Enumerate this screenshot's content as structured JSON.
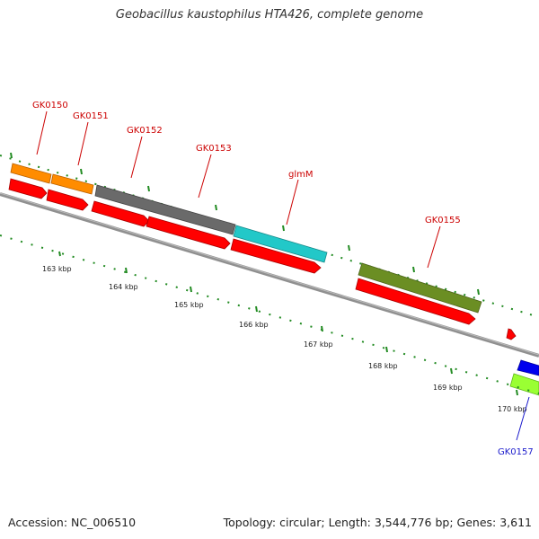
{
  "title": "Geobacillus kaustophilus HTA426, complete genome",
  "accession": "Accession: NC_006510",
  "topology": "Topology: circular; Length: 3,544,776 bp; Genes: 3,611",
  "colors": {
    "backbone": "#808080",
    "tick_green": "#228b22",
    "label_red": "#cc0000",
    "label_blue": "#1a1acc",
    "cds_red": "#ff0000",
    "orange": "#ff8c00",
    "gray": "#666666",
    "cyan": "#20c4c4",
    "olive": "#6b8e23",
    "blue": "#0000ee",
    "lime": "#9aff33"
  },
  "gene_labels": [
    "GK0150",
    "GK0151",
    "GK0152",
    "GK0153",
    "glmM",
    "GK0155",
    "GK0157"
  ],
  "kbp_labels": [
    "163 kbp",
    "164 kbp",
    "165 kbp",
    "166 kbp",
    "167 kbp",
    "168 kbp",
    "169 kbp",
    "170 kbp"
  ]
}
